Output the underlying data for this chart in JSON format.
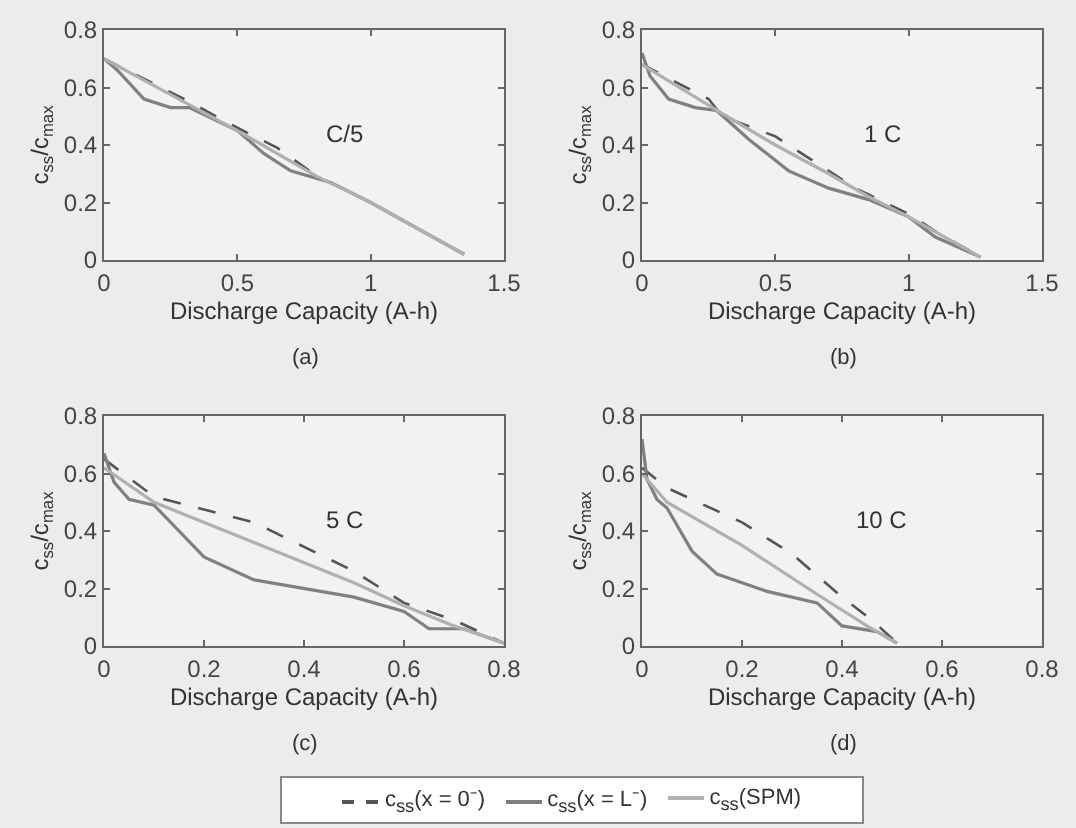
{
  "chart_data": [
    {
      "type": "line",
      "xlabel": "Discharge Capacity (A-h)",
      "ylabel": "c$_{ss}$/c$_{max}$",
      "annotations": [
        "C/5",
        "(a)"
      ],
      "xlim": [
        0,
        1.5
      ],
      "xticks": [
        0,
        0.5,
        1,
        1.5
      ],
      "ylim": [
        0,
        0.8
      ],
      "yticks": [
        0,
        0.2,
        0.4,
        0.6,
        0.8
      ],
      "grid": false,
      "legend": false,
      "marker": "none",
      "series": [
        {
          "color": "#555555",
          "line_style": "dashed",
          "x": [
            0,
            0.3,
            0.5,
            0.65,
            0.8,
            1.0,
            1.35
          ],
          "values": [
            0.7,
            0.56,
            0.46,
            0.39,
            0.29,
            0.2,
            0.02
          ]
        },
        {
          "color": "#808080",
          "line_style": "solid",
          "x": [
            0,
            0.05,
            0.15,
            0.25,
            0.32,
            0.5,
            0.6,
            0.7,
            0.85,
            1.0,
            1.35
          ],
          "values": [
            0.7,
            0.66,
            0.56,
            0.53,
            0.53,
            0.45,
            0.37,
            0.31,
            0.27,
            0.2,
            0.02
          ]
        },
        {
          "color": "#b0b0b0",
          "line_style": "solid",
          "x": [
            0,
            0.3,
            0.5,
            0.65,
            0.8,
            1.0,
            1.35
          ],
          "values": [
            0.7,
            0.55,
            0.45,
            0.37,
            0.29,
            0.2,
            0.02
          ]
        }
      ]
    },
    {
      "type": "line",
      "xlabel": "Discharge Capacity (A-h)",
      "ylabel": "c$_{ss}$/c$_{max}$",
      "annotations": [
        "1 C",
        "(b)"
      ],
      "xlim": [
        0,
        1.5
      ],
      "xticks": [
        0,
        0.5,
        1,
        1.5
      ],
      "ylim": [
        0,
        0.8
      ],
      "yticks": [
        0,
        0.2,
        0.4,
        0.6,
        0.8
      ],
      "grid": false,
      "legend": false,
      "marker": "none",
      "series": [
        {
          "color": "#555555",
          "line_style": "dashed",
          "x": [
            0,
            0.25,
            0.3,
            0.5,
            0.8,
            1.0,
            1.1,
            1.27
          ],
          "values": [
            0.68,
            0.56,
            0.5,
            0.43,
            0.25,
            0.16,
            0.1,
            0.01
          ]
        },
        {
          "color": "#808080",
          "line_style": "solid",
          "x": [
            0,
            0.03,
            0.1,
            0.2,
            0.28,
            0.4,
            0.55,
            0.7,
            0.85,
            1.0,
            1.1,
            1.27
          ],
          "values": [
            0.72,
            0.64,
            0.56,
            0.53,
            0.52,
            0.42,
            0.31,
            0.25,
            0.21,
            0.15,
            0.08,
            0.01
          ]
        },
        {
          "color": "#b0b0b0",
          "line_style": "solid",
          "x": [
            0,
            0.3,
            0.5,
            0.7,
            0.85,
            1.0,
            1.27
          ],
          "values": [
            0.68,
            0.51,
            0.4,
            0.3,
            0.22,
            0.15,
            0.01
          ]
        }
      ]
    },
    {
      "type": "line",
      "xlabel": "Discharge Capacity (A-h)",
      "ylabel": "c$_{ss}$/c$_{max}$",
      "annotations": [
        "5 C",
        "(c)"
      ],
      "xlim": [
        0,
        0.8
      ],
      "xticks": [
        0,
        0.2,
        0.4,
        0.6,
        0.8
      ],
      "ylim": [
        0,
        0.8
      ],
      "yticks": [
        0,
        0.2,
        0.4,
        0.6,
        0.8
      ],
      "grid": false,
      "legend": false,
      "marker": "none",
      "series": [
        {
          "color": "#555555",
          "line_style": "dashed",
          "x": [
            0,
            0.1,
            0.3,
            0.5,
            0.6,
            0.7,
            0.8
          ],
          "values": [
            0.65,
            0.52,
            0.43,
            0.26,
            0.15,
            0.09,
            0.01
          ]
        },
        {
          "color": "#808080",
          "line_style": "solid",
          "x": [
            0,
            0.02,
            0.05,
            0.1,
            0.15,
            0.2,
            0.3,
            0.5,
            0.6,
            0.65,
            0.72,
            0.8
          ],
          "values": [
            0.67,
            0.57,
            0.51,
            0.49,
            0.4,
            0.31,
            0.23,
            0.17,
            0.12,
            0.06,
            0.06,
            0.01
          ]
        },
        {
          "color": "#b0b0b0",
          "line_style": "solid",
          "x": [
            0,
            0.1,
            0.3,
            0.5,
            0.6,
            0.7,
            0.8
          ],
          "values": [
            0.62,
            0.5,
            0.36,
            0.22,
            0.14,
            0.07,
            0.01
          ]
        }
      ]
    },
    {
      "type": "line",
      "xlabel": "Discharge Capacity (A-h)",
      "ylabel": "c$_{ss}$/c$_{max}$",
      "annotations": [
        "10 C",
        "(d)"
      ],
      "xlim": [
        0,
        0.8
      ],
      "xticks": [
        0,
        0.2,
        0.4,
        0.6,
        0.8
      ],
      "ylim": [
        0,
        0.8
      ],
      "yticks": [
        0,
        0.2,
        0.4,
        0.6,
        0.8
      ],
      "grid": false,
      "legend": "bottom",
      "marker": "none",
      "series": [
        {
          "name": "c$_{ss}$(x = 0⁻)",
          "color": "#555555",
          "line_style": "dashed",
          "x": [
            0,
            0.05,
            0.2,
            0.3,
            0.4,
            0.46,
            0.51
          ],
          "values": [
            0.62,
            0.55,
            0.43,
            0.32,
            0.17,
            0.09,
            0.01
          ]
        },
        {
          "name": "c$_{ss}$(x = L⁻)",
          "color": "#808080",
          "line_style": "solid",
          "x": [
            0,
            0.01,
            0.03,
            0.05,
            0.1,
            0.15,
            0.25,
            0.35,
            0.4,
            0.47,
            0.51
          ],
          "values": [
            0.72,
            0.58,
            0.51,
            0.48,
            0.33,
            0.25,
            0.19,
            0.15,
            0.07,
            0.05,
            0.01
          ]
        },
        {
          "name": "c$_{ss}$(SPM)",
          "color": "#b0b0b0",
          "line_style": "solid",
          "x": [
            0,
            0.05,
            0.2,
            0.35,
            0.45,
            0.51
          ],
          "values": [
            0.6,
            0.5,
            0.35,
            0.18,
            0.07,
            0.01
          ]
        }
      ]
    }
  ]
}
